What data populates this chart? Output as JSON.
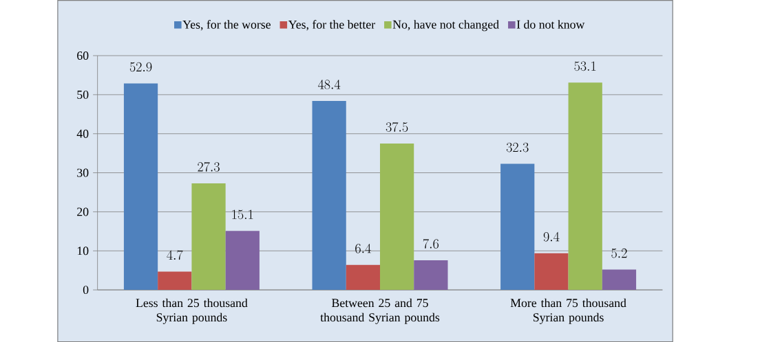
{
  "chart_data": {
    "type": "bar",
    "categories": [
      "Less than 25 thousand Syrian pounds",
      "Between 25 and 75 thousand Syrian pounds",
      "More than 75 thousand Syrian pounds"
    ],
    "series": [
      {
        "name": "Yes, for the worse",
        "color": "#4f81bd",
        "values": [
          52.9,
          48.4,
          32.3
        ]
      },
      {
        "name": "Yes, for the better",
        "color": "#c0504d",
        "values": [
          4.7,
          6.4,
          9.4
        ]
      },
      {
        "name": "No, have not changed",
        "color": "#9bbb59",
        "values": [
          27.3,
          37.5,
          53.1
        ]
      },
      {
        "name": "I do not know",
        "color": "#8064a2",
        "values": [
          15.1,
          7.6,
          5.2
        ]
      }
    ],
    "ylim": [
      0,
      60
    ],
    "yticks": [
      0,
      10,
      20,
      30,
      40,
      50,
      60
    ],
    "grid": "y",
    "legend": "top",
    "data_labels": true
  }
}
